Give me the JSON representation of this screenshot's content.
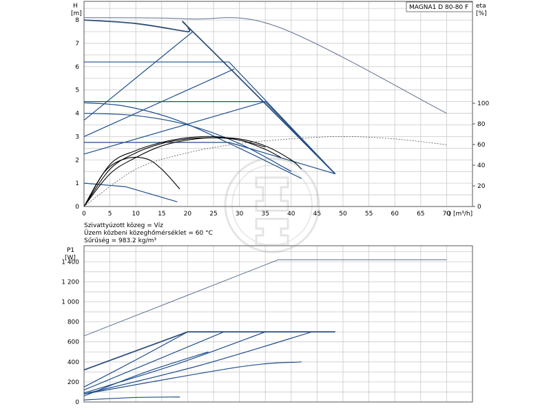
{
  "chart_data": [
    {
      "type": "line",
      "title": "MAGNA1 D 80-80 F",
      "ylabel": "H [m]",
      "ylabel_name": "H",
      "ylabel_unit": "[m]",
      "y2label_name": "eta",
      "y2label_unit": "[%]",
      "xlabel": "Q [m³/h]",
      "xlim": [
        0,
        75
      ],
      "ylim": [
        0,
        8.8
      ],
      "y2lim": [
        0,
        100
      ],
      "xticks": [
        "0",
        "5",
        "10",
        "15",
        "20",
        "25",
        "30",
        "35",
        "40",
        "45",
        "50",
        "55",
        "60",
        "65",
        "70"
      ],
      "yticks": [
        "0",
        "1",
        "2",
        "3",
        "4",
        "5",
        "6",
        "7",
        "8"
      ],
      "y2ticks": [
        "0",
        "20",
        "40",
        "60",
        "80",
        "100"
      ],
      "grid": true,
      "colors": {
        "max_curve": "#2e4f7a",
        "head": "#1c4d8c",
        "efficiency": "#000000",
        "reference": "#5b6f8f"
      },
      "series": [
        {
          "name": "",
          "role": "reference",
          "x": [
            0,
            20,
            37.5,
            70
          ],
          "y": [
            8.1,
            8.05,
            7.7,
            4.0
          ]
        },
        {
          "name": "",
          "role": "max",
          "x": [
            0,
            10,
            20,
            21,
            48.5
          ],
          "y": [
            8.0,
            7.85,
            7.5,
            7.5,
            1.4
          ]
        },
        {
          "name": "",
          "role": "head",
          "x": [
            0,
            28,
            48.5
          ],
          "y": [
            6.2,
            6.2,
            1.4
          ]
        },
        {
          "name": "",
          "role": "head",
          "x": [
            0,
            35,
            48.5
          ],
          "y": [
            4.5,
            4.5,
            1.4
          ]
        },
        {
          "name": "",
          "role": "head",
          "x": [
            0,
            28,
            48.5
          ],
          "y": [
            2.75,
            2.75,
            1.4
          ]
        },
        {
          "name": "",
          "role": "head",
          "x": [
            0,
            21
          ],
          "y": [
            3.7,
            7.5
          ]
        },
        {
          "name": "",
          "role": "head",
          "x": [
            0,
            29
          ],
          "y": [
            3.0,
            5.9
          ]
        },
        {
          "name": "",
          "role": "head",
          "x": [
            0,
            35
          ],
          "y": [
            2.25,
            4.5
          ]
        },
        {
          "name": "",
          "role": "head",
          "x": [
            0,
            8,
            18,
            30,
            42
          ],
          "y": [
            4.45,
            4.3,
            3.7,
            2.5,
            1.2
          ]
        },
        {
          "name": "",
          "role": "head",
          "x": [
            0,
            10,
            20,
            30,
            40
          ],
          "y": [
            4.0,
            3.9,
            3.5,
            2.7,
            1.5
          ]
        },
        {
          "name": "",
          "role": "head",
          "x": [
            0,
            8,
            18
          ],
          "y": [
            1.0,
            0.85,
            0.2
          ]
        },
        {
          "name": "",
          "role": "efficiency",
          "x": [
            0,
            5,
            10,
            15,
            20,
            25,
            30,
            35,
            40,
            42
          ],
          "y": [
            0,
            1.6,
            2.3,
            2.7,
            2.9,
            2.95,
            2.9,
            2.6,
            2.0,
            1.6
          ]
        },
        {
          "name": "",
          "role": "efficiency",
          "x": [
            0,
            5,
            10,
            15,
            20,
            25,
            30,
            35,
            38
          ],
          "y": [
            0,
            1.8,
            2.4,
            2.75,
            2.95,
            3.0,
            2.85,
            2.45,
            2.1
          ]
        },
        {
          "name": "",
          "role": "efficiency",
          "x": [
            0,
            4,
            8,
            12,
            15,
            18.5
          ],
          "y": [
            0,
            1.5,
            2.05,
            2.05,
            1.6,
            0.75
          ]
        },
        {
          "name": "",
          "role": "efficiency",
          "x": [
            0,
            5,
            10,
            15,
            20,
            25,
            30,
            35
          ],
          "y": [
            0,
            1.4,
            2.1,
            2.6,
            2.85,
            2.95,
            2.85,
            2.55
          ]
        },
        {
          "name": "",
          "role": "efficiency-overall",
          "x": [
            0,
            10,
            20,
            30,
            40,
            50,
            60,
            70
          ],
          "y": [
            0,
            1.6,
            2.3,
            2.7,
            2.9,
            3.0,
            2.9,
            2.65
          ]
        }
      ],
      "annotations": [
        "Szivattyúzott közeg = Víz",
        "Üzem közbeni közeghőmérséklet = 60 °C",
        "Sűrűség = 983.2 kg/m³"
      ]
    },
    {
      "type": "line",
      "ylabel": "P1 [W]",
      "ylabel_name": "P1",
      "ylabel_unit": "[W]",
      "xlim": [
        0,
        75
      ],
      "ylim": [
        0,
        1560
      ],
      "yticks": [
        "0",
        "200",
        "400",
        "600",
        "800",
        "1 000",
        "1 200",
        "1 400"
      ],
      "grid": true,
      "series": [
        {
          "name": "",
          "role": "reference",
          "x": [
            0,
            37.5,
            70
          ],
          "y": [
            660,
            1420,
            1420
          ]
        },
        {
          "name": "",
          "role": "max",
          "x": [
            0,
            20,
            48.5
          ],
          "y": [
            320,
            700,
            700
          ]
        },
        {
          "name": "",
          "role": "power",
          "x": [
            0,
            10,
            20
          ],
          "y": [
            150,
            420,
            700
          ]
        },
        {
          "name": "",
          "role": "power",
          "x": [
            0,
            14,
            27
          ],
          "y": [
            120,
            420,
            700
          ]
        },
        {
          "name": "",
          "role": "power",
          "x": [
            0,
            18,
            35
          ],
          "y": [
            90,
            380,
            700
          ]
        },
        {
          "name": "",
          "role": "power",
          "x": [
            0,
            22,
            44
          ],
          "y": [
            80,
            360,
            700
          ]
        },
        {
          "name": "",
          "role": "power",
          "x": [
            0,
            30,
            42
          ],
          "y": [
            80,
            350,
            400
          ]
        },
        {
          "name": "",
          "role": "power",
          "x": [
            0,
            12,
            24
          ],
          "y": [
            60,
            300,
            500
          ]
        },
        {
          "name": "",
          "role": "power",
          "x": [
            0,
            10,
            18.5
          ],
          "y": [
            20,
            45,
            50
          ]
        }
      ]
    }
  ]
}
